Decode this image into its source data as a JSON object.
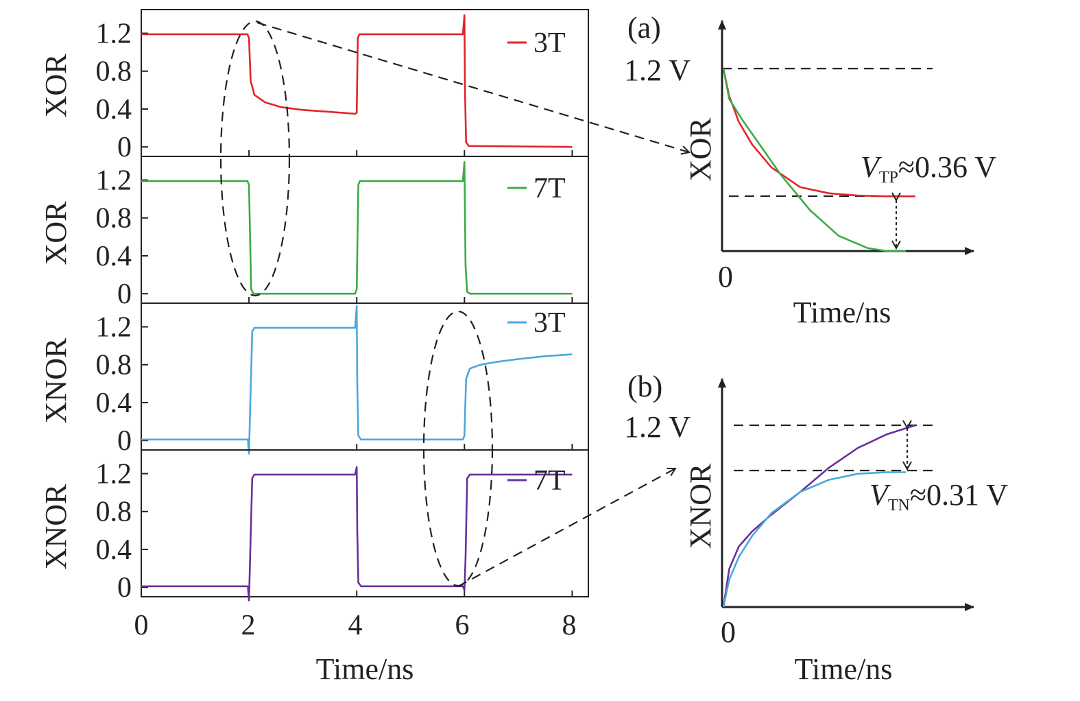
{
  "colors": {
    "xor_3t": "#e0252b",
    "xor_7t": "#3cab47",
    "xnor_3t": "#4aa8dc",
    "xnor_7t": "#6a2f9b",
    "ink": "#222222"
  },
  "chart_data": [
    {
      "id": "main",
      "type": "line",
      "xlabel": "Time/ns",
      "xlim": [
        0,
        8.3
      ],
      "xticks": [
        "0",
        "2",
        "4",
        "6",
        "8"
      ],
      "grid": false,
      "panels": [
        {
          "ylabel": "XOR",
          "legend": "3T",
          "color_key": "xor_3t",
          "ylim": [
            -0.1,
            1.45
          ],
          "yticks": [
            "1.2",
            "0.8",
            "0.4",
            "0"
          ],
          "points": [
            [
              0,
              1.19
            ],
            [
              1.97,
              1.19
            ],
            [
              2.0,
              1.15
            ],
            [
              2.03,
              0.7
            ],
            [
              2.1,
              0.55
            ],
            [
              2.3,
              0.47
            ],
            [
              2.6,
              0.42
            ],
            [
              3.0,
              0.39
            ],
            [
              3.5,
              0.37
            ],
            [
              3.97,
              0.35
            ],
            [
              4.0,
              0.36
            ],
            [
              4.02,
              1.15
            ],
            [
              4.05,
              1.19
            ],
            [
              5.97,
              1.19
            ],
            [
              6.0,
              1.39
            ],
            [
              6.01,
              0.6
            ],
            [
              6.03,
              0.05
            ],
            [
              6.08,
              0.01
            ],
            [
              8.0,
              0.0
            ]
          ]
        },
        {
          "ylabel": "XOR",
          "legend": "7T",
          "color_key": "xor_7t",
          "ylim": [
            -0.1,
            1.45
          ],
          "yticks": [
            "1.2",
            "0.8",
            "0.4",
            "0"
          ],
          "points": [
            [
              0,
              1.19
            ],
            [
              1.97,
              1.19
            ],
            [
              2.0,
              1.15
            ],
            [
              2.04,
              0.05
            ],
            [
              2.08,
              0.0
            ],
            [
              3.97,
              0.0
            ],
            [
              4.0,
              0.05
            ],
            [
              4.03,
              1.15
            ],
            [
              4.06,
              1.19
            ],
            [
              5.97,
              1.19
            ],
            [
              6.0,
              1.39
            ],
            [
              6.02,
              0.3
            ],
            [
              6.05,
              0.02
            ],
            [
              6.1,
              0.0
            ],
            [
              8.0,
              0.0
            ]
          ]
        },
        {
          "ylabel": "XNOR",
          "legend": "3T",
          "color_key": "xnor_3t",
          "ylim": [
            -0.1,
            1.45
          ],
          "yticks": [
            "1.2",
            "0.8",
            "0.4",
            "0"
          ],
          "points": [
            [
              0,
              0.01
            ],
            [
              1.98,
              0.01
            ],
            [
              2.0,
              -0.14
            ],
            [
              2.02,
              0.3
            ],
            [
              2.06,
              1.15
            ],
            [
              2.1,
              1.19
            ],
            [
              3.97,
              1.19
            ],
            [
              4.0,
              1.42
            ],
            [
              4.01,
              0.6
            ],
            [
              4.03,
              0.05
            ],
            [
              4.08,
              0.01
            ],
            [
              5.97,
              0.01
            ],
            [
              6.0,
              0.05
            ],
            [
              6.03,
              0.65
            ],
            [
              6.1,
              0.76
            ],
            [
              6.3,
              0.8
            ],
            [
              6.6,
              0.83
            ],
            [
              7.0,
              0.86
            ],
            [
              7.5,
              0.89
            ],
            [
              8.0,
              0.91
            ]
          ]
        },
        {
          "ylabel": "XNOR",
          "legend": "7T",
          "color_key": "xnor_7t",
          "ylim": [
            -0.1,
            1.45
          ],
          "yticks": [
            "1.2",
            "0.8",
            "0.4",
            "0"
          ],
          "points": [
            [
              0,
              0.01
            ],
            [
              1.98,
              0.01
            ],
            [
              2.0,
              -0.14
            ],
            [
              2.02,
              0.3
            ],
            [
              2.06,
              1.15
            ],
            [
              2.1,
              1.19
            ],
            [
              3.97,
              1.19
            ],
            [
              4.0,
              1.27
            ],
            [
              4.01,
              0.6
            ],
            [
              4.03,
              0.05
            ],
            [
              4.08,
              0.01
            ],
            [
              5.97,
              0.01
            ],
            [
              6.0,
              -0.03
            ],
            [
              6.02,
              0.3
            ],
            [
              6.05,
              1.15
            ],
            [
              6.1,
              1.19
            ],
            [
              8.0,
              1.19
            ]
          ]
        }
      ]
    },
    {
      "id": "inset_a",
      "type": "line",
      "panel_label": "(a)",
      "ylabel": "XOR",
      "xlabel": "Time/ns",
      "x_origin_label": "0",
      "level_label": "1.2 V",
      "annotation": {
        "symbol": "V",
        "subscript": "TP",
        "text": "≈0.36 V"
      },
      "ylim": [
        0,
        1.2
      ],
      "series": [
        {
          "color_key": "xor_3t",
          "points": [
            [
              0,
              1.2
            ],
            [
              0.03,
              1.02
            ],
            [
              0.08,
              0.85
            ],
            [
              0.15,
              0.7
            ],
            [
              0.25,
              0.55
            ],
            [
              0.4,
              0.42
            ],
            [
              0.55,
              0.38
            ],
            [
              0.7,
              0.365
            ],
            [
              0.85,
              0.36
            ],
            [
              1.0,
              0.36
            ]
          ]
        },
        {
          "color_key": "xor_7t",
          "points": [
            [
              0,
              1.2
            ],
            [
              0.03,
              1.0
            ],
            [
              0.1,
              0.86
            ],
            [
              0.2,
              0.68
            ],
            [
              0.3,
              0.5
            ],
            [
              0.45,
              0.27
            ],
            [
              0.6,
              0.1
            ],
            [
              0.75,
              0.02
            ],
            [
              0.85,
              0.0
            ],
            [
              0.95,
              0.0
            ]
          ]
        }
      ]
    },
    {
      "id": "inset_b",
      "type": "line",
      "panel_label": "(b)",
      "ylabel": "XNOR",
      "xlabel": "Time/ns",
      "x_origin_label": "0",
      "level_label": "1.2 V",
      "annotation": {
        "symbol": "V",
        "subscript": "TN",
        "text": "≈0.31 V"
      },
      "ylim": [
        0,
        1.2
      ],
      "series": [
        {
          "color_key": "xnor_7t",
          "points": [
            [
              0,
              0.0
            ],
            [
              0.03,
              0.25
            ],
            [
              0.08,
              0.4
            ],
            [
              0.15,
              0.5
            ],
            [
              0.25,
              0.61
            ],
            [
              0.4,
              0.76
            ],
            [
              0.55,
              0.92
            ],
            [
              0.7,
              1.05
            ],
            [
              0.85,
              1.14
            ],
            [
              1.0,
              1.2
            ]
          ]
        },
        {
          "color_key": "xnor_3t",
          "points": [
            [
              0,
              0.0
            ],
            [
              0.03,
              0.18
            ],
            [
              0.08,
              0.33
            ],
            [
              0.15,
              0.47
            ],
            [
              0.25,
              0.62
            ],
            [
              0.4,
              0.76
            ],
            [
              0.55,
              0.84
            ],
            [
              0.7,
              0.88
            ],
            [
              0.85,
              0.89
            ],
            [
              0.95,
              0.89
            ]
          ]
        }
      ]
    }
  ]
}
